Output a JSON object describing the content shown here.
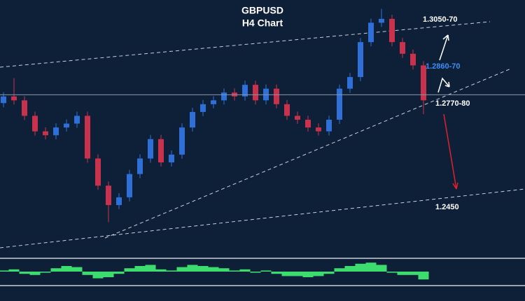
{
  "chart_data": {
    "type": "candlestick",
    "title": "GBPUSD",
    "subtitle": "H4 Chart",
    "open": [
      1.274,
      1.2764,
      1.275,
      1.2694,
      1.2638,
      1.2624,
      1.2652,
      1.2666,
      1.2694,
      1.254,
      1.2442,
      1.2372,
      1.24,
      1.2484,
      1.254,
      1.261,
      1.2526,
      1.2554,
      1.2652,
      1.2708,
      1.2736,
      1.275,
      1.2778,
      1.2764,
      1.2806,
      1.275,
      1.2792,
      1.2736,
      1.2694,
      1.268,
      1.2652,
      1.2638,
      1.268,
      1.2792,
      1.2834,
      1.296,
      1.303,
      1.3044,
      1.296,
      1.2918,
      1.2876
    ],
    "high": [
      1.2779,
      1.283,
      1.2765,
      1.2709,
      1.2653,
      1.2667,
      1.2681,
      1.2709,
      1.2709,
      1.2555,
      1.2457,
      1.2415,
      1.2499,
      1.2555,
      1.2625,
      1.2625,
      1.2569,
      1.2667,
      1.2723,
      1.2751,
      1.2765,
      1.2793,
      1.2793,
      1.2821,
      1.2821,
      1.2807,
      1.2807,
      1.2751,
      1.2709,
      1.2695,
      1.2667,
      1.2695,
      1.2807,
      1.2849,
      1.2975,
      1.3045,
      1.308,
      1.3059,
      1.2975,
      1.2933,
      1.2891
    ],
    "low": [
      1.2725,
      1.2735,
      1.2679,
      1.2623,
      1.2609,
      1.2609,
      1.2637,
      1.2651,
      1.2525,
      1.2427,
      1.231,
      1.2357,
      1.2385,
      1.2469,
      1.2525,
      1.2511,
      1.2511,
      1.2539,
      1.2637,
      1.2693,
      1.2721,
      1.2735,
      1.2749,
      1.2749,
      1.2735,
      1.2735,
      1.2721,
      1.2679,
      1.2665,
      1.2637,
      1.2623,
      1.2623,
      1.2665,
      1.2777,
      1.2819,
      1.2945,
      1.3015,
      1.2945,
      1.2903,
      1.2861,
      1.27
    ],
    "close": [
      1.2764,
      1.275,
      1.2694,
      1.2638,
      1.2624,
      1.2652,
      1.2666,
      1.2694,
      1.254,
      1.2442,
      1.2372,
      1.24,
      1.2484,
      1.254,
      1.261,
      1.2526,
      1.2554,
      1.2652,
      1.2708,
      1.2736,
      1.275,
      1.2778,
      1.2764,
      1.2806,
      1.275,
      1.2792,
      1.2736,
      1.2694,
      1.268,
      1.2652,
      1.2638,
      1.268,
      1.2792,
      1.2834,
      1.296,
      1.303,
      1.3044,
      1.296,
      1.2918,
      1.2876,
      1.275
    ],
    "ylim": [
      1.219,
      1.3112
    ],
    "up_color": "#2f6fd8",
    "down_color": "#c8324d",
    "level": 1.277,
    "annotations": [
      {
        "text": "1.3050-70",
        "color": "#ffffff"
      },
      {
        "text": "1.2860-70",
        "color": "#3d8ef5"
      },
      {
        "text": "1.2770-80",
        "color": "#ffffff"
      },
      {
        "text": "1.2450",
        "color": "#ffffff"
      }
    ],
    "oscillator": {
      "color": "#3ddc6e",
      "ylim": [
        -1,
        1
      ],
      "values": [
        0.1,
        0.2,
        -0.2,
        -0.3,
        -0.1,
        0.3,
        0.5,
        0.4,
        -0.3,
        -0.6,
        -0.5,
        -0.2,
        0.3,
        0.5,
        0.6,
        0.2,
        0.1,
        0.4,
        0.6,
        0.5,
        0.4,
        0.3,
        0.1,
        0.2,
        -0.1,
        0.1,
        -0.2,
        -0.4,
        -0.4,
        -0.5,
        -0.4,
        -0.2,
        0.3,
        0.5,
        0.7,
        0.8,
        0.6,
        -0.1,
        -0.3,
        -0.3,
        -0.7
      ]
    }
  }
}
